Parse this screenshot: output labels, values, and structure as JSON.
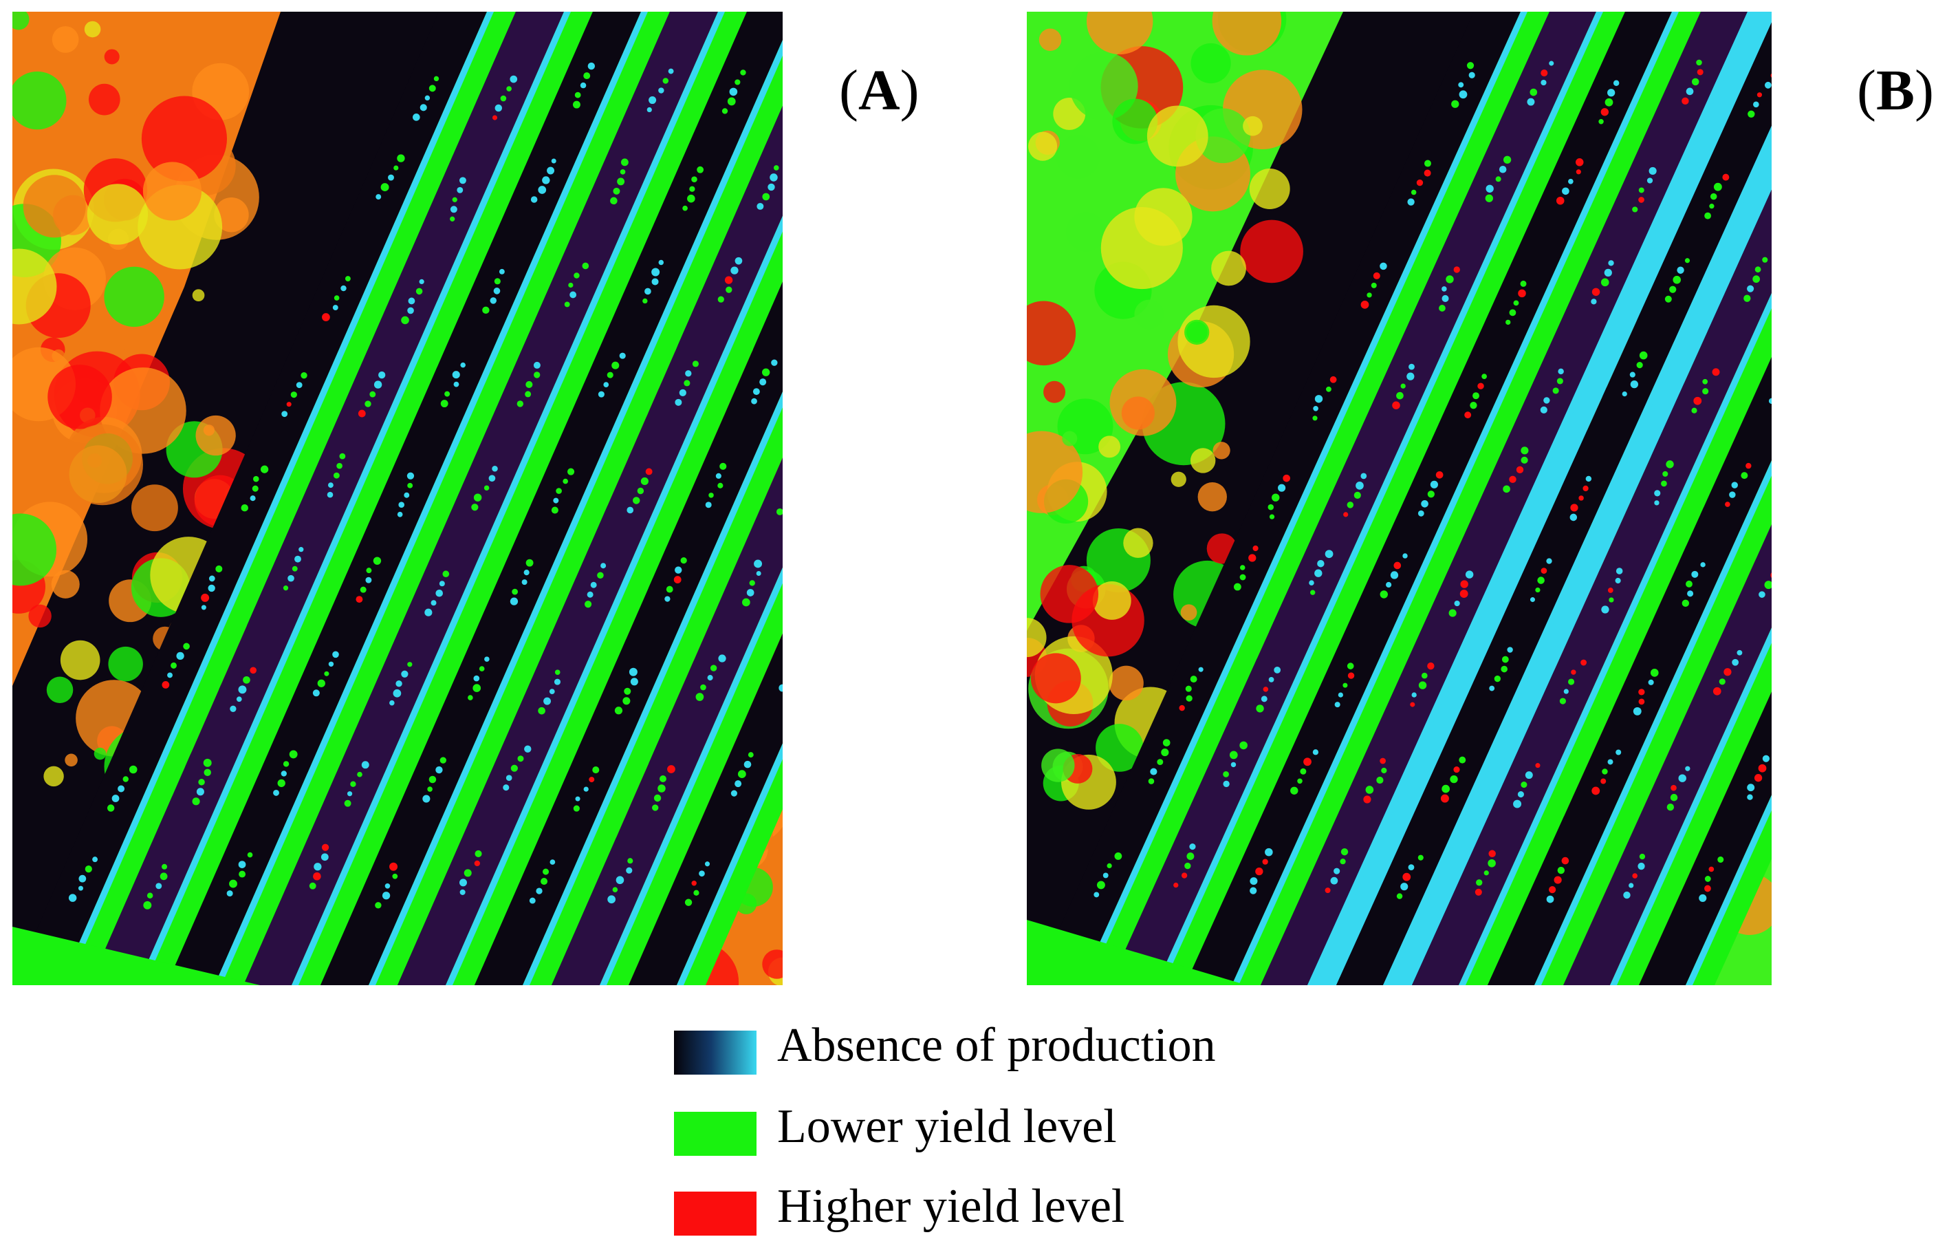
{
  "panels": [
    {
      "letter": "A"
    },
    {
      "letter": "B"
    }
  ],
  "legend": [
    {
      "label": "Absence of production",
      "gradient": [
        "#05030a",
        "#123a6a",
        "#38d8f0"
      ]
    },
    {
      "label": "Lower yield level",
      "color": "#19f20f"
    },
    {
      "label": "Higher yield level",
      "color": "#fb0d0d"
    }
  ],
  "colors": {
    "background_field_a": "#f07a14",
    "background_field_b": "#3ff01e",
    "row_dark": "#0b0712",
    "row_purple": "#2a0e42",
    "strip_green": "#19f20f",
    "strip_cyan": "#38d8f0",
    "hot_red": "#fb0d0d",
    "orange": "#ff8c1a",
    "yellow": "#e6e61a"
  }
}
